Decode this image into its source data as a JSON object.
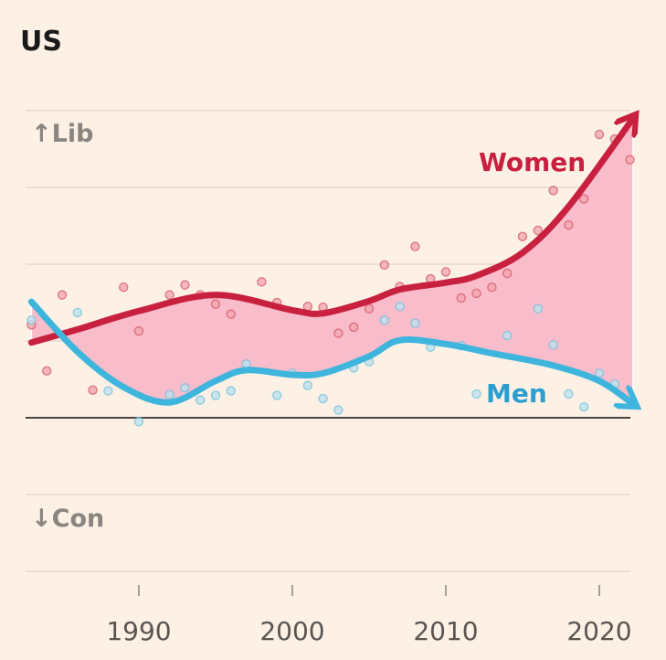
{
  "chart_data": {
    "type": "line",
    "title": "US",
    "y_top_label": "↑Lib",
    "y_bottom_label": "↓Con",
    "xlim": [
      1982.7,
      2022.2
    ],
    "ylim": [
      -2,
      4
    ],
    "x_ticks": [
      1990,
      2000,
      2010,
      2020
    ],
    "y_gridlines": [
      -2,
      -1,
      0,
      1,
      2,
      3,
      4
    ],
    "grid": true,
    "colors": {
      "women": "#c8203f",
      "men": "#3eb5dc",
      "gap_fill": "#f9bccb",
      "background": "#fdf1e6"
    },
    "series": [
      {
        "name": "Women",
        "trend": {
          "x": [
            1983,
            1986,
            1990,
            1995,
            2000,
            2002,
            2005,
            2007,
            2010,
            2012,
            2015,
            2018,
            2022.2
          ],
          "y": [
            0.98,
            1.15,
            1.39,
            1.6,
            1.4,
            1.36,
            1.52,
            1.67,
            1.76,
            1.85,
            2.15,
            2.75,
            3.9
          ]
        },
        "points": {
          "x": [
            1983,
            1984,
            1985,
            1987,
            1989,
            1990,
            1992,
            1993,
            1994,
            1995,
            1996,
            1998,
            1999,
            2001,
            2002,
            2003,
            2004,
            2005,
            2006,
            2007,
            2008,
            2009,
            2010,
            2011,
            2012,
            2013,
            2014,
            2015,
            2016,
            2017,
            2018,
            2019,
            2020,
            2021,
            2022
          ],
          "y": [
            1.21,
            0.61,
            1.6,
            0.36,
            1.7,
            1.13,
            1.6,
            1.73,
            1.6,
            1.48,
            1.35,
            1.77,
            1.5,
            1.45,
            1.44,
            1.1,
            1.18,
            1.42,
            1.99,
            1.71,
            2.23,
            1.81,
            1.9,
            1.56,
            1.62,
            1.7,
            1.88,
            2.36,
            2.44,
            2.96,
            2.51,
            2.85,
            3.69,
            3.63,
            3.36
          ]
        }
      },
      {
        "name": "Men",
        "trend": {
          "x": [
            1983,
            1986,
            1989,
            1992,
            1995,
            1997,
            2000,
            2002,
            2005,
            2007,
            2010,
            2013,
            2017,
            2020,
            2022.2
          ],
          "y": [
            1.51,
            0.86,
            0.4,
            0.2,
            0.48,
            0.62,
            0.56,
            0.58,
            0.8,
            1.01,
            0.96,
            0.84,
            0.68,
            0.48,
            0.18
          ]
        },
        "points": {
          "x": [
            1983,
            1986,
            1988,
            1990,
            1992,
            1993,
            1994,
            1995,
            1996,
            1997,
            1999,
            2000,
            2001,
            2002,
            2003,
            2004,
            2005,
            2006,
            2007,
            2008,
            2009,
            2011,
            2012,
            2014,
            2016,
            2017,
            2018,
            2019,
            2020,
            2021
          ],
          "y": [
            1.27,
            1.37,
            0.35,
            -0.05,
            0.3,
            0.39,
            0.23,
            0.29,
            0.35,
            0.7,
            0.29,
            0.58,
            0.42,
            0.25,
            0.1,
            0.65,
            0.73,
            1.27,
            1.45,
            1.23,
            0.92,
            0.94,
            0.31,
            1.07,
            1.42,
            0.95,
            0.31,
            0.14,
            0.58,
            0.44
          ]
        }
      }
    ]
  }
}
